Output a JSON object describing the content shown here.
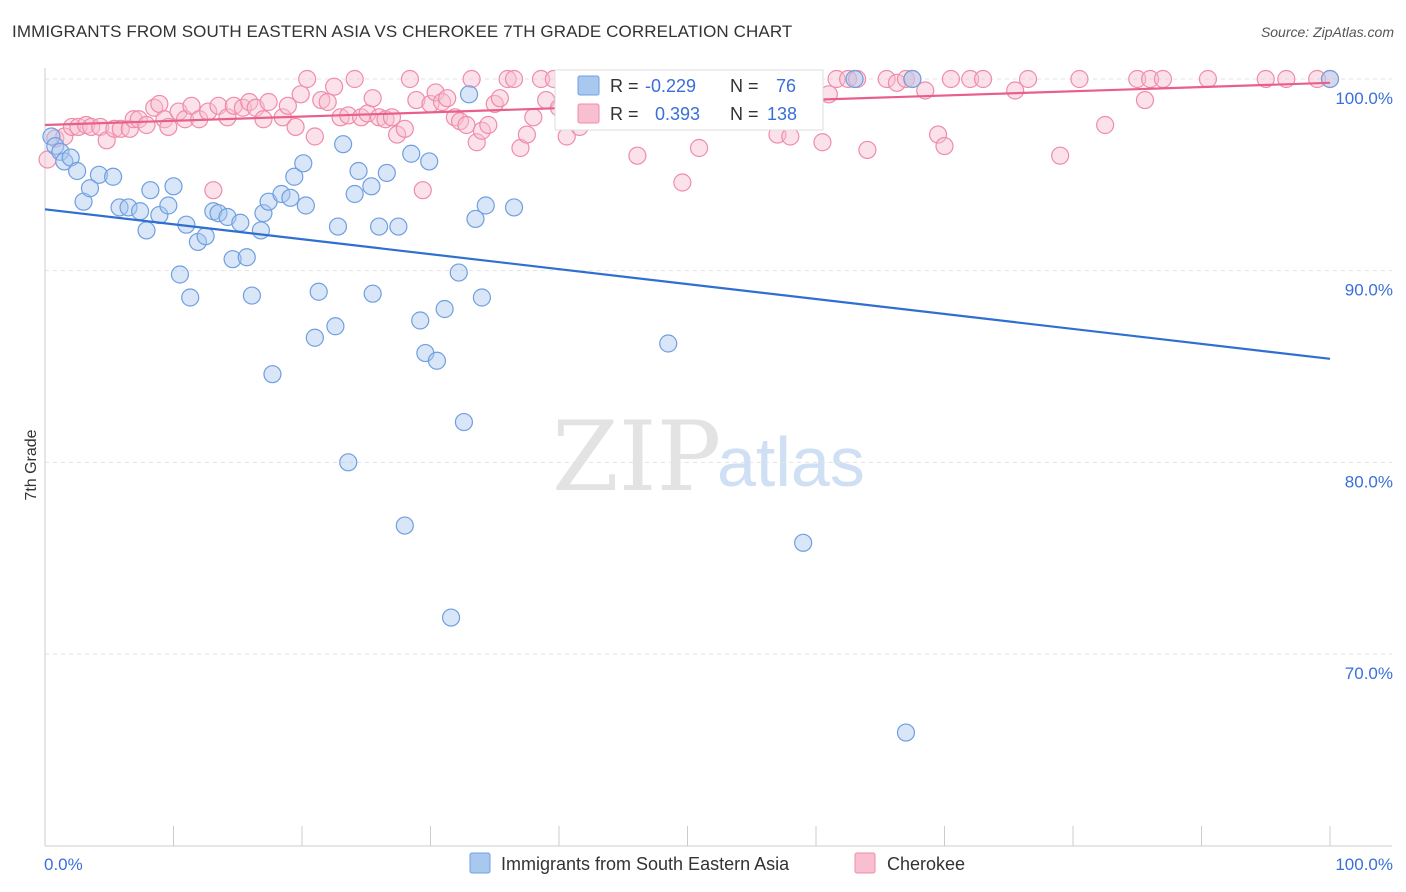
{
  "header": {
    "title": "IMMIGRANTS FROM SOUTH EASTERN ASIA VS CHEROKEE 7TH GRADE CORRELATION CHART",
    "source": "Source: ZipAtlas.com"
  },
  "watermark": {
    "zip": "ZIP",
    "atlas": "atlas"
  },
  "stats": {
    "r_label": "R =",
    "n_label": "N =",
    "rows": [
      {
        "r": "-0.229",
        "n": "76",
        "color": "#6f9fe0"
      },
      {
        "r": "0.393",
        "n": "138",
        "color": "#f08bab"
      }
    ]
  },
  "chart_data": {
    "type": "scatter",
    "title": "IMMIGRANTS FROM SOUTH EASTERN ASIA VS CHEROKEE 7TH GRADE CORRELATION CHART",
    "xlabel": "",
    "ylabel": "7th Grade",
    "xlim": [
      0,
      100
    ],
    "ylim": [
      60,
      102
    ],
    "x_tick_labels": [
      "0.0%",
      "100.0%"
    ],
    "y_ticks": [
      70,
      80,
      90,
      100
    ],
    "y_tick_labels": [
      "70.0%",
      "80.0%",
      "90.0%",
      "100.0%"
    ],
    "grid": true,
    "legend_position": "bottom-center",
    "series": [
      {
        "name": "Immigrants from South Eastern Asia",
        "color": "#6f9fe0",
        "fill": "#a9c8f0",
        "trend": {
          "x": [
            0,
            100
          ],
          "y": [
            93.2,
            85.4
          ],
          "color": "#2f6fd0"
        },
        "points": [
          [
            0.5,
            97.0
          ],
          [
            0.8,
            96.5
          ],
          [
            1.2,
            96.2
          ],
          [
            1.5,
            95.7
          ],
          [
            2.0,
            95.9
          ],
          [
            2.5,
            95.2
          ],
          [
            3.0,
            93.6
          ],
          [
            3.5,
            94.3
          ],
          [
            4.2,
            95.0
          ],
          [
            5.3,
            94.9
          ],
          [
            5.8,
            93.3
          ],
          [
            6.5,
            93.3
          ],
          [
            7.4,
            93.1
          ],
          [
            7.9,
            92.1
          ],
          [
            8.2,
            94.2
          ],
          [
            8.9,
            92.9
          ],
          [
            9.6,
            93.4
          ],
          [
            10.0,
            94.4
          ],
          [
            10.5,
            89.8
          ],
          [
            11.0,
            92.4
          ],
          [
            11.3,
            88.6
          ],
          [
            11.9,
            91.5
          ],
          [
            12.5,
            91.8
          ],
          [
            13.1,
            93.1
          ],
          [
            13.5,
            93.0
          ],
          [
            14.2,
            92.8
          ],
          [
            14.6,
            90.6
          ],
          [
            15.2,
            92.5
          ],
          [
            15.7,
            90.7
          ],
          [
            16.1,
            88.7
          ],
          [
            16.8,
            92.1
          ],
          [
            17.0,
            93.0
          ],
          [
            17.4,
            93.6
          ],
          [
            17.7,
            84.6
          ],
          [
            18.4,
            94.0
          ],
          [
            19.1,
            93.8
          ],
          [
            19.4,
            94.9
          ],
          [
            20.1,
            95.6
          ],
          [
            20.3,
            93.4
          ],
          [
            21.0,
            86.5
          ],
          [
            21.3,
            88.9
          ],
          [
            22.6,
            87.1
          ],
          [
            22.8,
            92.3
          ],
          [
            23.2,
            96.6
          ],
          [
            23.6,
            80.0
          ],
          [
            24.1,
            94.0
          ],
          [
            24.4,
            95.2
          ],
          [
            25.4,
            94.4
          ],
          [
            25.5,
            88.8
          ],
          [
            26.0,
            92.3
          ],
          [
            26.6,
            95.1
          ],
          [
            27.5,
            92.3
          ],
          [
            28.0,
            76.7
          ],
          [
            28.5,
            96.1
          ],
          [
            29.2,
            87.4
          ],
          [
            29.6,
            85.7
          ],
          [
            29.9,
            95.7
          ],
          [
            30.5,
            85.3
          ],
          [
            31.1,
            88.0
          ],
          [
            31.6,
            71.9
          ],
          [
            32.2,
            89.9
          ],
          [
            32.6,
            82.1
          ],
          [
            33.5,
            92.7
          ],
          [
            34.0,
            88.6
          ],
          [
            34.3,
            93.4
          ],
          [
            36.5,
            93.3
          ],
          [
            42.0,
            98.6
          ],
          [
            48.5,
            86.2
          ],
          [
            51.0,
            99.0
          ],
          [
            59.0,
            75.8
          ],
          [
            63.0,
            100.0
          ],
          [
            67.0,
            65.9
          ],
          [
            67.5,
            100.0
          ],
          [
            100.0,
            100.0
          ],
          [
            33.0,
            99.2
          ],
          [
            45.0,
            99.5
          ]
        ]
      },
      {
        "name": "Cherokee",
        "color": "#f08bab",
        "fill": "#f7bfd0",
        "trend": {
          "x": [
            0,
            100
          ],
          "y": [
            97.6,
            99.8
          ],
          "color": "#e8608a"
        },
        "points": [
          [
            0.2,
            95.8
          ],
          [
            0.8,
            96.9
          ],
          [
            1.5,
            97.0
          ],
          [
            2.1,
            97.5
          ],
          [
            2.6,
            97.5
          ],
          [
            3.2,
            97.6
          ],
          [
            3.6,
            97.5
          ],
          [
            4.3,
            97.5
          ],
          [
            4.8,
            96.8
          ],
          [
            5.4,
            97.4
          ],
          [
            5.9,
            97.4
          ],
          [
            6.6,
            97.4
          ],
          [
            6.9,
            97.9
          ],
          [
            7.3,
            97.9
          ],
          [
            7.9,
            97.6
          ],
          [
            8.5,
            98.5
          ],
          [
            8.9,
            98.7
          ],
          [
            9.3,
            97.9
          ],
          [
            9.6,
            97.5
          ],
          [
            10.4,
            98.3
          ],
          [
            10.9,
            97.9
          ],
          [
            11.4,
            98.6
          ],
          [
            12.0,
            97.9
          ],
          [
            12.7,
            98.3
          ],
          [
            13.1,
            94.2
          ],
          [
            13.5,
            98.6
          ],
          [
            14.2,
            98.0
          ],
          [
            14.7,
            98.6
          ],
          [
            15.4,
            98.5
          ],
          [
            15.9,
            98.8
          ],
          [
            16.4,
            98.5
          ],
          [
            17.0,
            97.9
          ],
          [
            17.4,
            98.8
          ],
          [
            18.5,
            98.0
          ],
          [
            18.9,
            98.6
          ],
          [
            19.5,
            97.5
          ],
          [
            19.9,
            99.2
          ],
          [
            20.4,
            100.0
          ],
          [
            21.0,
            97.0
          ],
          [
            21.5,
            98.9
          ],
          [
            22.0,
            98.8
          ],
          [
            22.5,
            99.6
          ],
          [
            23.0,
            98.0
          ],
          [
            23.6,
            98.1
          ],
          [
            24.1,
            100.0
          ],
          [
            24.6,
            98.0
          ],
          [
            25.1,
            98.2
          ],
          [
            25.5,
            99.0
          ],
          [
            26.0,
            98.0
          ],
          [
            26.5,
            97.9
          ],
          [
            27.0,
            98.0
          ],
          [
            27.4,
            97.1
          ],
          [
            28.0,
            97.4
          ],
          [
            28.4,
            100.0
          ],
          [
            28.9,
            98.9
          ],
          [
            29.4,
            94.2
          ],
          [
            30.0,
            98.7
          ],
          [
            30.4,
            99.3
          ],
          [
            30.9,
            98.8
          ],
          [
            31.3,
            99.0
          ],
          [
            31.9,
            98.0
          ],
          [
            32.3,
            97.8
          ],
          [
            32.8,
            97.6
          ],
          [
            33.2,
            100.0
          ],
          [
            33.6,
            96.7
          ],
          [
            34.0,
            97.3
          ],
          [
            34.5,
            97.6
          ],
          [
            35.0,
            98.7
          ],
          [
            35.4,
            99.0
          ],
          [
            36.0,
            100.0
          ],
          [
            36.5,
            100.0
          ],
          [
            37.0,
            96.4
          ],
          [
            37.5,
            97.1
          ],
          [
            38.0,
            98.0
          ],
          [
            38.6,
            100.0
          ],
          [
            39.0,
            98.9
          ],
          [
            39.6,
            100.0
          ],
          [
            40.0,
            98.5
          ],
          [
            40.6,
            97.0
          ],
          [
            41.0,
            100.0
          ],
          [
            41.6,
            97.5
          ],
          [
            42.1,
            100.0
          ],
          [
            42.6,
            98.3
          ],
          [
            43.1,
            100.0
          ],
          [
            43.8,
            98.0
          ],
          [
            44.3,
            99.4
          ],
          [
            45.0,
            98.8
          ],
          [
            45.6,
            100.0
          ],
          [
            46.1,
            96.0
          ],
          [
            46.6,
            99.0
          ],
          [
            47.0,
            100.0
          ],
          [
            47.6,
            98.6
          ],
          [
            48.1,
            100.0
          ],
          [
            49.0,
            99.2
          ],
          [
            49.6,
            94.6
          ],
          [
            50.2,
            98.9
          ],
          [
            50.9,
            96.4
          ],
          [
            51.6,
            99.0
          ],
          [
            52.3,
            100.0
          ],
          [
            53.0,
            99.2
          ],
          [
            53.5,
            100.0
          ],
          [
            54.3,
            98.3
          ],
          [
            55.3,
            99.5
          ],
          [
            56.0,
            99.6
          ],
          [
            56.5,
            100.0
          ],
          [
            57.0,
            97.1
          ],
          [
            58.0,
            97.0
          ],
          [
            59.4,
            100.0
          ],
          [
            60.5,
            96.7
          ],
          [
            61.0,
            99.2
          ],
          [
            61.6,
            100.0
          ],
          [
            62.5,
            100.0
          ],
          [
            63.2,
            100.0
          ],
          [
            64.0,
            96.3
          ],
          [
            65.5,
            100.0
          ],
          [
            66.3,
            99.8
          ],
          [
            67.0,
            100.0
          ],
          [
            67.5,
            100.0
          ],
          [
            68.5,
            99.4
          ],
          [
            69.5,
            97.1
          ],
          [
            70.0,
            96.5
          ],
          [
            70.5,
            100.0
          ],
          [
            72.0,
            100.0
          ],
          [
            73.0,
            100.0
          ],
          [
            75.5,
            99.4
          ],
          [
            76.5,
            100.0
          ],
          [
            79.0,
            96.0
          ],
          [
            80.5,
            100.0
          ],
          [
            82.5,
            97.6
          ],
          [
            85.0,
            100.0
          ],
          [
            85.6,
            98.9
          ],
          [
            86.0,
            100.0
          ],
          [
            87.0,
            100.0
          ],
          [
            90.5,
            100.0
          ],
          [
            95.0,
            100.0
          ],
          [
            96.6,
            100.0
          ],
          [
            99.0,
            100.0
          ],
          [
            100.0,
            100.0
          ]
        ]
      }
    ]
  }
}
